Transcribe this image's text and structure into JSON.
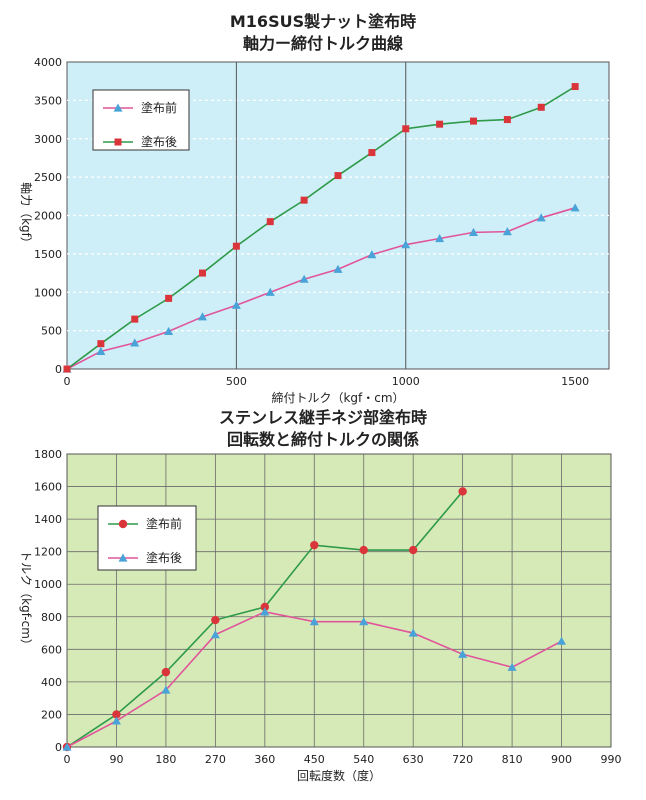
{
  "chart_data": [
    {
      "type": "line",
      "title": "M16SUS製ナット塗布時",
      "subtitle": "軸力ー締付トルク曲線",
      "xlabel": "締付トルク（kgf・cm）",
      "ylabel": "軸力（kgf）",
      "xlim": [
        0,
        1600
      ],
      "ylim": [
        0,
        4000
      ],
      "xticks": [
        0,
        500,
        1000,
        1500
      ],
      "yticks": [
        0,
        500,
        1000,
        1500,
        2000,
        2500,
        3000,
        3500,
        4000
      ],
      "grid": "dashed horizontal, solid vertical at 500 and 1000",
      "legend_position": "top-left",
      "background": "#cfeff8",
      "series": [
        {
          "name": "塗布前",
          "marker": "triangle",
          "color": "#e0559a",
          "marker_color": "#4aa3d8",
          "x": [
            0,
            100,
            200,
            300,
            400,
            500,
            600,
            700,
            800,
            900,
            1000,
            1100,
            1200,
            1300,
            1400,
            1500
          ],
          "y": [
            0,
            230,
            340,
            490,
            680,
            830,
            1000,
            1170,
            1300,
            1490,
            1620,
            1700,
            1780,
            1790,
            1970,
            2100
          ]
        },
        {
          "name": "塗布後",
          "marker": "square",
          "color": "#2e9a4a",
          "marker_color": "#d9353a",
          "x": [
            0,
            100,
            200,
            300,
            400,
            500,
            600,
            700,
            800,
            900,
            1000,
            1100,
            1200,
            1300,
            1400,
            1500
          ],
          "y": [
            0,
            330,
            650,
            920,
            1250,
            1600,
            1920,
            2200,
            2520,
            2820,
            3130,
            3190,
            3230,
            3250,
            3410,
            3680
          ]
        }
      ]
    },
    {
      "type": "line",
      "title": "ステンレス継手ネジ部塗布時",
      "subtitle": "回転数と締付トルクの関係",
      "xlabel": "回転度数（度）",
      "ylabel": "トルク（kgf-cm）",
      "xlim": [
        0,
        990
      ],
      "ylim": [
        0,
        1800
      ],
      "xticks": [
        0,
        90,
        180,
        270,
        360,
        450,
        540,
        630,
        720,
        810,
        900,
        990
      ],
      "yticks": [
        0,
        200,
        400,
        600,
        800,
        1000,
        1200,
        1400,
        1600,
        1800
      ],
      "grid": "solid vertical and horizontal",
      "legend_position": "top-left",
      "background": "#d6eab8",
      "series": [
        {
          "name": "塗布前",
          "marker": "circle",
          "color": "#2e9a4a",
          "marker_color": "#d9353a",
          "x": [
            0,
            90,
            180,
            270,
            360,
            450,
            540,
            630,
            720
          ],
          "y": [
            0,
            200,
            460,
            780,
            860,
            1240,
            1210,
            1210,
            1570
          ]
        },
        {
          "name": "塗布後",
          "marker": "triangle",
          "color": "#e0559a",
          "marker_color": "#4aa3d8",
          "x": [
            0,
            90,
            180,
            270,
            360,
            450,
            540,
            630,
            720,
            810,
            900
          ],
          "y": [
            0,
            160,
            350,
            690,
            830,
            770,
            770,
            700,
            570,
            490,
            650
          ]
        }
      ]
    }
  ]
}
